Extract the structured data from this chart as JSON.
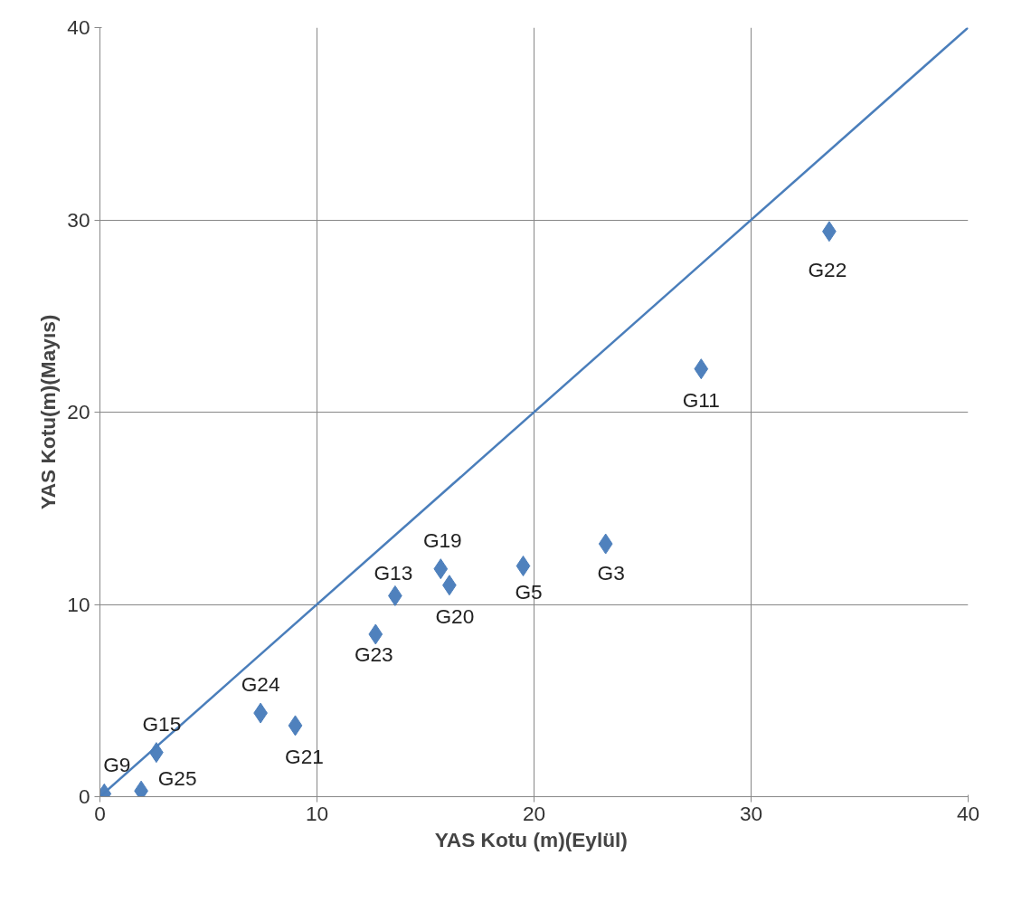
{
  "chart_data": {
    "type": "scatter",
    "xlabel": "YAS Kotu  (m)(Eylül)",
    "ylabel": "YAS Kotu(m)(Mayıs)",
    "xlim": [
      0,
      40
    ],
    "ylim": [
      0,
      40
    ],
    "xticks": [
      0,
      10,
      20,
      30,
      40
    ],
    "yticks": [
      0,
      10,
      20,
      30,
      40
    ],
    "grid": true,
    "series": [
      {
        "marker": "diamond",
        "color": "#4f81bd",
        "x": [
          0.2,
          1.9,
          2.6,
          7.4,
          9.0,
          12.7,
          13.6,
          15.7,
          16.1,
          19.5,
          23.3,
          27.7,
          33.6
        ],
        "values": [
          0.15,
          0.3,
          2.3,
          4.35,
          3.7,
          8.45,
          10.45,
          11.85,
          11.0,
          12.0,
          13.15,
          22.25,
          29.4
        ]
      },
      {
        "type": "line",
        "color": "#4a7ebb",
        "x": [
          0,
          40
        ],
        "values": [
          0,
          40
        ]
      }
    ],
    "annotations": [
      {
        "text": "G9",
        "x": 0.2,
        "y": 0.15
      },
      {
        "text": "G25",
        "x": 1.9,
        "y": 0.3
      },
      {
        "text": "G15",
        "x": 2.6,
        "y": 2.3
      },
      {
        "text": "G24",
        "x": 7.4,
        "y": 4.35
      },
      {
        "text": "G21",
        "x": 9.0,
        "y": 3.7
      },
      {
        "text": "G23",
        "x": 12.7,
        "y": 8.45
      },
      {
        "text": "G13",
        "x": 13.6,
        "y": 10.45
      },
      {
        "text": "G19",
        "x": 15.7,
        "y": 11.85
      },
      {
        "text": "G20",
        "x": 16.1,
        "y": 11.0
      },
      {
        "text": "G5",
        "x": 19.5,
        "y": 12.0
      },
      {
        "text": "G3",
        "x": 23.3,
        "y": 13.15
      },
      {
        "text": "G11",
        "x": 27.7,
        "y": 22.25
      },
      {
        "text": "G22",
        "x": 33.6,
        "y": 29.4
      }
    ]
  }
}
